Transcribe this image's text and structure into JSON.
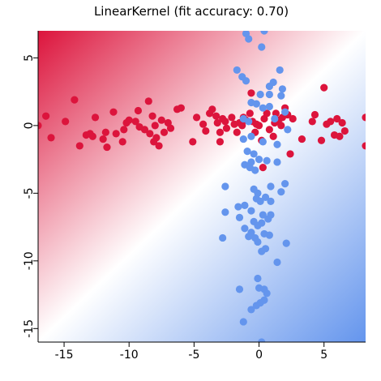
{
  "chart_data": {
    "type": "scatter",
    "title": "LinearKernel (fit accuracy: 0.70)",
    "xlabel": "",
    "ylabel": "",
    "xlim": [
      -17,
      8.2
    ],
    "ylim": [
      -16,
      7
    ],
    "xticks": [
      -15,
      -10,
      -5,
      0,
      5
    ],
    "yticks": [
      5,
      0,
      -5,
      -10,
      -15
    ],
    "xtick_labels": [
      "-15",
      "-10",
      "-5",
      "0",
      "5"
    ],
    "ytick_labels": [
      "5",
      "0",
      "-5",
      "-10",
      "-15"
    ],
    "ytick_label_rotation": "vertical",
    "grid": false,
    "legend": "none",
    "background": {
      "type": "decision-function-gradient",
      "positive_color": "#dc143c",
      "negative_color": "#6495ed",
      "neutral_color": "#ffffff",
      "note": "red toward upper-left, blue toward lower-right"
    },
    "series": [
      {
        "color": "#dc143c",
        "points": [
          [
            -17.0,
            0.0
          ],
          [
            -16.4,
            0.7
          ],
          [
            -16.0,
            -0.9
          ],
          [
            -14.9,
            0.3
          ],
          [
            -14.2,
            1.9
          ],
          [
            -13.8,
            -1.5
          ],
          [
            -13.3,
            -0.7
          ],
          [
            -13.0,
            -0.6
          ],
          [
            -12.8,
            -0.8
          ],
          [
            -12.6,
            0.6
          ],
          [
            -12.0,
            -1.0
          ],
          [
            -11.8,
            -0.5
          ],
          [
            -11.7,
            -1.6
          ],
          [
            -11.2,
            1.0
          ],
          [
            -11.0,
            -0.6
          ],
          [
            -10.5,
            -1.2
          ],
          [
            -10.4,
            -0.3
          ],
          [
            -10.2,
            0.2
          ],
          [
            -10.0,
            0.4
          ],
          [
            -9.5,
            0.3
          ],
          [
            -9.3,
            1.1
          ],
          [
            -9.2,
            -0.1
          ],
          [
            -8.8,
            -0.3
          ],
          [
            -8.5,
            1.8
          ],
          [
            -8.4,
            -0.6
          ],
          [
            -8.2,
            0.7
          ],
          [
            -8.1,
            -1.2
          ],
          [
            -8.0,
            0.0
          ],
          [
            -7.9,
            -0.9
          ],
          [
            -7.7,
            -1.5
          ],
          [
            -7.5,
            0.4
          ],
          [
            -7.3,
            -0.5
          ],
          [
            -7.0,
            0.2
          ],
          [
            -6.8,
            -0.2
          ],
          [
            -6.3,
            1.2
          ],
          [
            -6.0,
            1.3
          ],
          [
            -5.1,
            -1.2
          ],
          [
            -4.8,
            0.6
          ],
          [
            -4.3,
            0.1
          ],
          [
            -4.1,
            -0.4
          ],
          [
            -3.8,
            0.9
          ],
          [
            -3.6,
            1.2
          ],
          [
            -3.3,
            0.7
          ],
          [
            -3.2,
            0.2
          ],
          [
            -3.0,
            -0.5
          ],
          [
            -3.0,
            -1.2
          ],
          [
            -2.8,
            0.5
          ],
          [
            -2.6,
            0.3
          ],
          [
            -2.5,
            -0.2
          ],
          [
            -2.1,
            0.6
          ],
          [
            -1.9,
            0.1
          ],
          [
            -1.7,
            -0.5
          ],
          [
            -1.5,
            0.2
          ],
          [
            -1.3,
            0.0
          ],
          [
            -1.2,
            0.6
          ],
          [
            -1.0,
            0.4
          ],
          [
            -0.7,
            0.9
          ],
          [
            -0.6,
            2.4
          ],
          [
            -0.5,
            0.3
          ],
          [
            -0.3,
            -0.5
          ],
          [
            -0.2,
            0.1
          ],
          [
            0.0,
            0.0
          ],
          [
            0.2,
            -1.1
          ],
          [
            0.3,
            -3.1
          ],
          [
            0.4,
            0.5
          ],
          [
            0.6,
            0.9
          ],
          [
            0.8,
            -0.3
          ],
          [
            1.1,
            -0.8
          ],
          [
            1.2,
            0.2
          ],
          [
            1.3,
            0.9
          ],
          [
            1.5,
            0.4
          ],
          [
            1.7,
            0.0
          ],
          [
            1.8,
            0.6
          ],
          [
            2.0,
            1.3
          ],
          [
            2.2,
            0.8
          ],
          [
            2.4,
            -2.1
          ],
          [
            2.6,
            0.5
          ],
          [
            3.3,
            -1.0
          ],
          [
            4.1,
            0.3
          ],
          [
            4.3,
            0.8
          ],
          [
            4.8,
            -1.1
          ],
          [
            5.0,
            2.8
          ],
          [
            5.2,
            0.1
          ],
          [
            5.5,
            0.3
          ],
          [
            5.8,
            -0.7
          ],
          [
            6.0,
            0.5
          ],
          [
            6.2,
            -0.8
          ],
          [
            6.4,
            0.2
          ],
          [
            6.6,
            -0.4
          ],
          [
            8.2,
            0.6
          ],
          [
            8.2,
            -1.5
          ]
        ]
      },
      {
        "color": "#6495ed",
        "points": [
          [
            -1.3,
            7.6
          ],
          [
            -1.0,
            6.8
          ],
          [
            0.4,
            7.0
          ],
          [
            0.2,
            5.8
          ],
          [
            -0.8,
            6.4
          ],
          [
            -1.7,
            4.1
          ],
          [
            -1.3,
            3.6
          ],
          [
            -1.0,
            3.3
          ],
          [
            1.6,
            4.1
          ],
          [
            0.8,
            2.9
          ],
          [
            1.1,
            3.2
          ],
          [
            1.8,
            2.7
          ],
          [
            0.1,
            2.3
          ],
          [
            0.8,
            2.3
          ],
          [
            1.7,
            2.2
          ],
          [
            -0.6,
            1.7
          ],
          [
            -0.2,
            1.6
          ],
          [
            0.8,
            1.4
          ],
          [
            2.0,
            1.0
          ],
          [
            0.3,
            1.3
          ],
          [
            -1.2,
            0.5
          ],
          [
            -0.8,
            0.3
          ],
          [
            1.2,
            0.5
          ],
          [
            2.2,
            -0.3
          ],
          [
            -1.2,
            -1.0
          ],
          [
            -0.6,
            -0.8
          ],
          [
            0.3,
            -1.2
          ],
          [
            1.4,
            -1.4
          ],
          [
            -0.9,
            -1.9
          ],
          [
            -0.4,
            -2.1
          ],
          [
            0.0,
            -2.5
          ],
          [
            -0.6,
            -2.7
          ],
          [
            -1.1,
            -2.9
          ],
          [
            -0.7,
            -3.1
          ],
          [
            -0.3,
            -3.3
          ],
          [
            0.6,
            -2.6
          ],
          [
            1.4,
            -2.7
          ],
          [
            -2.6,
            -4.5
          ],
          [
            0.9,
            -4.5
          ],
          [
            2.0,
            -4.3
          ],
          [
            -0.4,
            -4.7
          ],
          [
            -0.1,
            -5.0
          ],
          [
            -0.2,
            -5.4
          ],
          [
            0.1,
            -5.6
          ],
          [
            0.5,
            -5.3
          ],
          [
            0.9,
            -5.6
          ],
          [
            1.7,
            -4.9
          ],
          [
            -1.6,
            -6.0
          ],
          [
            -1.1,
            -5.9
          ],
          [
            -0.6,
            -6.3
          ],
          [
            0.3,
            -6.6
          ],
          [
            0.7,
            -6.9
          ],
          [
            0.9,
            -6.6
          ],
          [
            -2.6,
            -6.4
          ],
          [
            -1.5,
            -6.8
          ],
          [
            -0.4,
            -7.1
          ],
          [
            -0.1,
            -7.4
          ],
          [
            0.2,
            -7.2
          ],
          [
            -1.1,
            -7.6
          ],
          [
            -0.6,
            -7.9
          ],
          [
            -0.3,
            -8.3
          ],
          [
            0.4,
            -8.0
          ],
          [
            0.8,
            -8.1
          ],
          [
            -2.8,
            -8.3
          ],
          [
            -0.8,
            -8.2
          ],
          [
            -0.1,
            -8.6
          ],
          [
            0.5,
            -9.1
          ],
          [
            0.2,
            -9.3
          ],
          [
            2.1,
            -8.7
          ],
          [
            1.4,
            -10.1
          ],
          [
            -0.1,
            -11.3
          ],
          [
            -1.5,
            -12.1
          ],
          [
            0.0,
            -12.0
          ],
          [
            0.4,
            -12.1
          ],
          [
            0.6,
            -12.4
          ],
          [
            0.4,
            -12.9
          ],
          [
            0.1,
            -13.1
          ],
          [
            -0.2,
            -13.3
          ],
          [
            -0.6,
            -13.6
          ],
          [
            -1.2,
            -14.5
          ],
          [
            0.2,
            -16.0
          ]
        ]
      }
    ]
  }
}
